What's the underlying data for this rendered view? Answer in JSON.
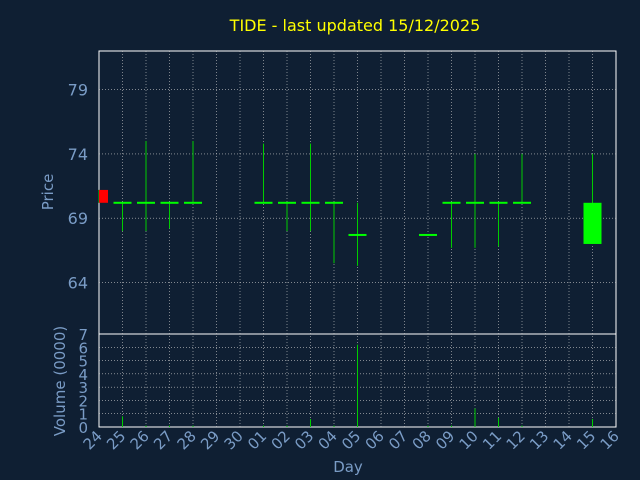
{
  "chart_data": {
    "type": "candlestick",
    "title": "TIDE - last updated 15/12/2025",
    "price_axis": {
      "label": "Price",
      "ylim": [
        60,
        82
      ],
      "ticks": [
        64,
        69,
        74,
        79
      ],
      "grid": true
    },
    "volume_axis": {
      "label": "Volume (0000)",
      "ylim": [
        0,
        7
      ],
      "ticks": [
        0,
        1,
        2,
        3,
        4,
        5,
        6,
        7
      ],
      "grid": true
    },
    "x_axis": {
      "label": "Day",
      "ticks": [
        "24",
        "25",
        "26",
        "27",
        "28",
        "29",
        "30",
        "01",
        "02",
        "03",
        "04",
        "05",
        "06",
        "07",
        "08",
        "09",
        "10",
        "11",
        "12",
        "13",
        "14",
        "15",
        "16"
      ],
      "grid": true
    },
    "candles": [
      {
        "day": "24",
        "open": 70.2,
        "close": 71.2,
        "high": 71.2,
        "low": 70.2,
        "volume": 0.0
      },
      {
        "day": "25",
        "open": 70.2,
        "close": 70.2,
        "high": 70.2,
        "low": 68.0,
        "volume": 0.8
      },
      {
        "day": "26",
        "open": 70.2,
        "close": 70.2,
        "high": 75.0,
        "low": 68.0,
        "volume": 0.1
      },
      {
        "day": "27",
        "open": 70.2,
        "close": 70.2,
        "high": 70.2,
        "low": 68.2,
        "volume": 0.1
      },
      {
        "day": "28",
        "open": 70.2,
        "close": 70.2,
        "high": 75.0,
        "low": 70.2,
        "volume": 0.1
      },
      {
        "day": "01",
        "open": 70.2,
        "close": 70.2,
        "high": 74.8,
        "low": 70.2,
        "volume": 0.1
      },
      {
        "day": "02",
        "open": 70.2,
        "close": 70.2,
        "high": 70.2,
        "low": 68.0,
        "volume": 0.1
      },
      {
        "day": "03",
        "open": 70.2,
        "close": 70.2,
        "high": 74.8,
        "low": 68.0,
        "volume": 0.6
      },
      {
        "day": "04",
        "open": 70.2,
        "close": 70.2,
        "high": 70.2,
        "low": 65.5,
        "volume": 0.1
      },
      {
        "day": "05",
        "open": 67.7,
        "close": 67.7,
        "high": 70.2,
        "low": 65.3,
        "volume": 6.2
      },
      {
        "day": "08",
        "open": 67.7,
        "close": 67.7,
        "high": 67.7,
        "low": 67.7,
        "volume": 0.1
      },
      {
        "day": "09",
        "open": 70.2,
        "close": 70.2,
        "high": 70.2,
        "low": 66.7,
        "volume": 0.1
      },
      {
        "day": "10",
        "open": 70.2,
        "close": 70.2,
        "high": 74.0,
        "low": 66.7,
        "volume": 1.4
      },
      {
        "day": "11",
        "open": 70.2,
        "close": 70.2,
        "high": 70.2,
        "low": 66.8,
        "volume": 0.7
      },
      {
        "day": "12",
        "open": 70.2,
        "close": 70.2,
        "high": 74.0,
        "low": 70.2,
        "volume": 0.1
      },
      {
        "day": "15",
        "open": 67.0,
        "close": 70.2,
        "high": 74.0,
        "low": 67.0,
        "volume": 0.6
      }
    ],
    "colors": {
      "background": "#0f1f33",
      "plot_background": "#0f1f33",
      "axis": "#ffffff",
      "grid": "#c8c8c8",
      "title": "#ffff00",
      "labels": "#7a9cc6",
      "up": "#00ff00",
      "down": "#ff0000",
      "wick": "#00cc00",
      "volume": "#00cc00"
    }
  }
}
